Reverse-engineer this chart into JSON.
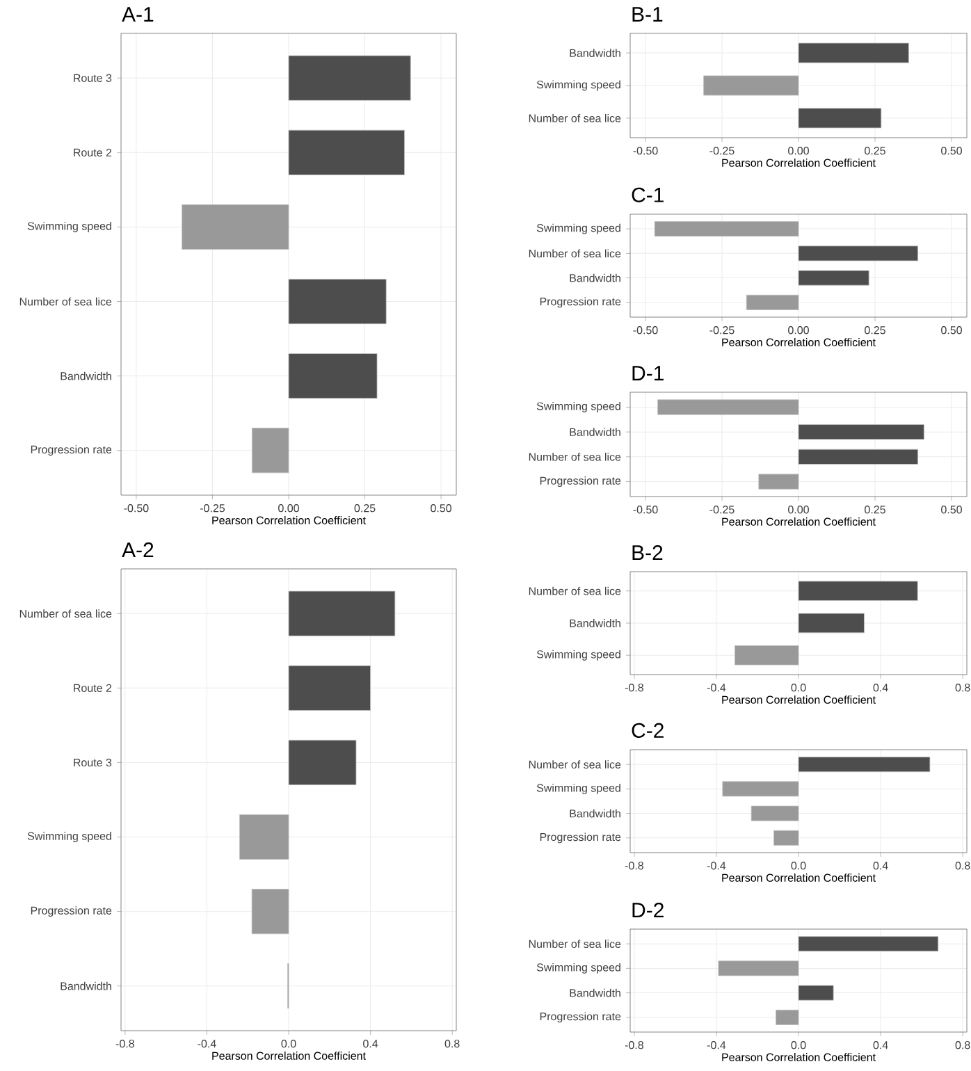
{
  "chart_data": [
    {
      "type": "bar",
      "orientation": "horizontal",
      "title": "A-1",
      "xlabel": "Pearson Correlation Coefficient",
      "categories": [
        "Route 3",
        "Route 2",
        "Swimming speed",
        "Number of sea lice",
        "Bandwidth",
        "Progression rate"
      ],
      "values": [
        0.4,
        0.38,
        -0.35,
        0.32,
        0.29,
        -0.12
      ],
      "colors": [
        "#4d4d4d",
        "#4d4d4d",
        "#999999",
        "#4d4d4d",
        "#4d4d4d",
        "#999999"
      ],
      "xlim": [
        -0.55,
        0.55
      ],
      "xticks": [
        {
          "value": -0.5,
          "label": "-0.50"
        },
        {
          "value": -0.25,
          "label": "-0.25"
        },
        {
          "value": 0,
          "label": "0.00"
        },
        {
          "value": 0.25,
          "label": "0.25"
        },
        {
          "value": 0.5,
          "label": "0.50"
        }
      ],
      "grid": true
    },
    {
      "type": "bar",
      "orientation": "horizontal",
      "title": "B-1",
      "xlabel": "Pearson Correlation Coefficient",
      "categories": [
        "Bandwidth",
        "Swimming speed",
        "Number of sea lice"
      ],
      "values": [
        0.36,
        -0.31,
        0.27
      ],
      "colors": [
        "#4d4d4d",
        "#999999",
        "#4d4d4d"
      ],
      "xlim": [
        -0.55,
        0.55
      ],
      "xticks": [
        {
          "value": -0.5,
          "label": "-0.50"
        },
        {
          "value": -0.25,
          "label": "-0.25"
        },
        {
          "value": 0,
          "label": "0.00"
        },
        {
          "value": 0.25,
          "label": "0.25"
        },
        {
          "value": 0.5,
          "label": "0.50"
        }
      ],
      "grid": true
    },
    {
      "type": "bar",
      "orientation": "horizontal",
      "title": "C-1",
      "xlabel": "Pearson Correlation Coefficient",
      "categories": [
        "Swimming speed",
        "Number of sea lice",
        "Bandwidth",
        "Progression rate"
      ],
      "values": [
        -0.47,
        0.39,
        0.23,
        -0.17
      ],
      "colors": [
        "#999999",
        "#4d4d4d",
        "#4d4d4d",
        "#999999"
      ],
      "xlim": [
        -0.55,
        0.55
      ],
      "xticks": [
        {
          "value": -0.5,
          "label": "-0.50"
        },
        {
          "value": -0.25,
          "label": "-0.25"
        },
        {
          "value": 0,
          "label": "0.00"
        },
        {
          "value": 0.25,
          "label": "0.25"
        },
        {
          "value": 0.5,
          "label": "0.50"
        }
      ],
      "grid": true
    },
    {
      "type": "bar",
      "orientation": "horizontal",
      "title": "D-1",
      "xlabel": "Pearson Correlation Coefficient",
      "categories": [
        "Swimming speed",
        "Bandwidth",
        "Number of sea lice",
        "Progression rate"
      ],
      "values": [
        -0.46,
        0.41,
        0.39,
        -0.13
      ],
      "colors": [
        "#999999",
        "#4d4d4d",
        "#4d4d4d",
        "#999999"
      ],
      "xlim": [
        -0.55,
        0.55
      ],
      "xticks": [
        {
          "value": -0.5,
          "label": "-0.50"
        },
        {
          "value": -0.25,
          "label": "-0.25"
        },
        {
          "value": 0,
          "label": "0.00"
        },
        {
          "value": 0.25,
          "label": "0.25"
        },
        {
          "value": 0.5,
          "label": "0.50"
        }
      ],
      "grid": true
    },
    {
      "type": "bar",
      "orientation": "horizontal",
      "title": "A-2",
      "xlabel": "Pearson Correlation Coefficient",
      "categories": [
        "Number of sea lice",
        "Route 2",
        "Route 3",
        "Swimming speed",
        "Progression rate",
        "Bandwidth"
      ],
      "values": [
        0.52,
        0.4,
        0.33,
        -0.24,
        -0.18,
        -0.005
      ],
      "colors": [
        "#4d4d4d",
        "#4d4d4d",
        "#4d4d4d",
        "#999999",
        "#999999",
        "#999999"
      ],
      "xlim": [
        -0.82,
        0.82
      ],
      "xticks": [
        -0.8,
        -0.4,
        {
          "value": 0,
          "label": "0.0"
        },
        0.4,
        0.8
      ],
      "grid": true
    },
    {
      "type": "bar",
      "orientation": "horizontal",
      "title": "B-2",
      "xlabel": "Pearson Correlation Coefficient",
      "categories": [
        "Number of sea lice",
        "Bandwidth",
        "Swimming speed"
      ],
      "values": [
        0.58,
        0.32,
        -0.31
      ],
      "colors": [
        "#4d4d4d",
        "#4d4d4d",
        "#999999"
      ],
      "xlim": [
        -0.82,
        0.82
      ],
      "xticks": [
        -0.8,
        -0.4,
        {
          "value": 0,
          "label": "0.0"
        },
        0.4,
        0.8
      ],
      "grid": true
    },
    {
      "type": "bar",
      "orientation": "horizontal",
      "title": "C-2",
      "xlabel": "Pearson Correlation Coefficient",
      "categories": [
        "Number of sea lice",
        "Swimming speed",
        "Bandwidth",
        "Progression rate"
      ],
      "values": [
        0.64,
        -0.37,
        -0.23,
        -0.12
      ],
      "colors": [
        "#4d4d4d",
        "#999999",
        "#999999",
        "#999999"
      ],
      "xlim": [
        -0.82,
        0.82
      ],
      "xticks": [
        -0.8,
        -0.4,
        {
          "value": 0,
          "label": "0.0"
        },
        0.4,
        0.8
      ],
      "grid": true
    },
    {
      "type": "bar",
      "orientation": "horizontal",
      "title": "D-2",
      "xlabel": "Pearson Correlation Coefficient",
      "categories": [
        "Number of sea lice",
        "Swimming speed",
        "Bandwidth",
        "Progression rate"
      ],
      "values": [
        0.68,
        -0.39,
        0.17,
        -0.11
      ],
      "colors": [
        "#4d4d4d",
        "#999999",
        "#4d4d4d",
        "#999999"
      ],
      "xlim": [
        -0.82,
        0.82
      ],
      "xticks": [
        -0.8,
        -0.4,
        {
          "value": 0,
          "label": "0.0"
        },
        0.4,
        0.8
      ],
      "grid": true
    }
  ]
}
